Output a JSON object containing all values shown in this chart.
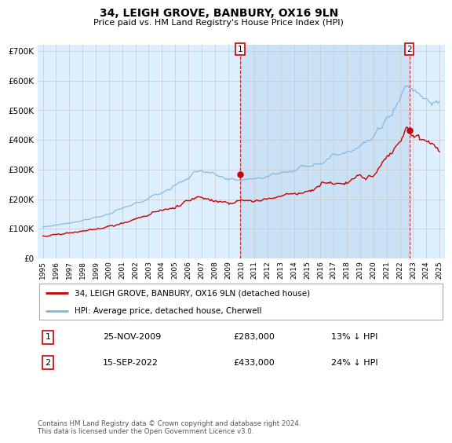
{
  "title": "34, LEIGH GROVE, BANBURY, OX16 9LN",
  "subtitle": "Price paid vs. HM Land Registry's House Price Index (HPI)",
  "hpi_label": "HPI: Average price, detached house, Cherwell",
  "property_label": "34, LEIGH GROVE, BANBURY, OX16 9LN (detached house)",
  "legend1_date": "25-NOV-2009",
  "legend1_price": "£283,000",
  "legend1_hpi": "13% ↓ HPI",
  "legend2_date": "15-SEP-2022",
  "legend2_price": "£433,000",
  "legend2_hpi": "24% ↓ HPI",
  "footer": "Contains HM Land Registry data © Crown copyright and database right 2024.\nThis data is licensed under the Open Government Licence v3.0.",
  "hpi_color": "#7ab8e0",
  "property_color": "#cc0000",
  "vline_color": "#cc0000",
  "grid_color": "#c8c8c8",
  "bg_color": "#ddeeff",
  "shade_color": "#c8dff5",
  "ylim": [
    0,
    720000
  ],
  "yticks": [
    0,
    100000,
    200000,
    300000,
    400000,
    500000,
    600000,
    700000
  ],
  "sale1_x": 2009.9,
  "sale1_y": 283000,
  "sale2_x": 2022.71,
  "sale2_y": 433000,
  "anno1_label": "1",
  "anno2_label": "2",
  "xlim_left": 1994.6,
  "xlim_right": 2025.4
}
